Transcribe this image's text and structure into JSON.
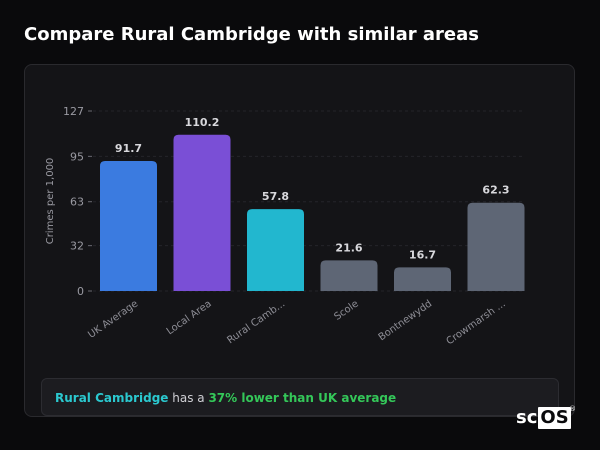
{
  "page": {
    "title": "Compare Rural Cambridge with similar areas"
  },
  "summary": {
    "area": "Rural Cambridge",
    "middle": " has a ",
    "stat": "37% lower than UK average"
  },
  "logo": {
    "left": "sc",
    "boxed": "OS",
    "mark": "®"
  },
  "chart_data": {
    "type": "bar",
    "title": "",
    "xlabel": "",
    "ylabel": "Crimes per 1,000",
    "ylim": [
      0,
      127
    ],
    "yticks": [
      0,
      32,
      63,
      95,
      127
    ],
    "grid": true,
    "categories": [
      "UK Average",
      "Local Area",
      "Rural Camb...",
      "Scole",
      "Bontnewydd",
      "Crowmarsh ..."
    ],
    "values": [
      91.7,
      110.2,
      57.8,
      21.6,
      16.7,
      62.3
    ],
    "value_labels": [
      "91.7",
      "110.2",
      "57.8",
      "21.6",
      "16.7",
      "62.3"
    ],
    "colors": [
      "#3b7be0",
      "#7a4fd6",
      "#22b7cf",
      "#5e6675",
      "#5e6675",
      "#5e6675"
    ]
  }
}
